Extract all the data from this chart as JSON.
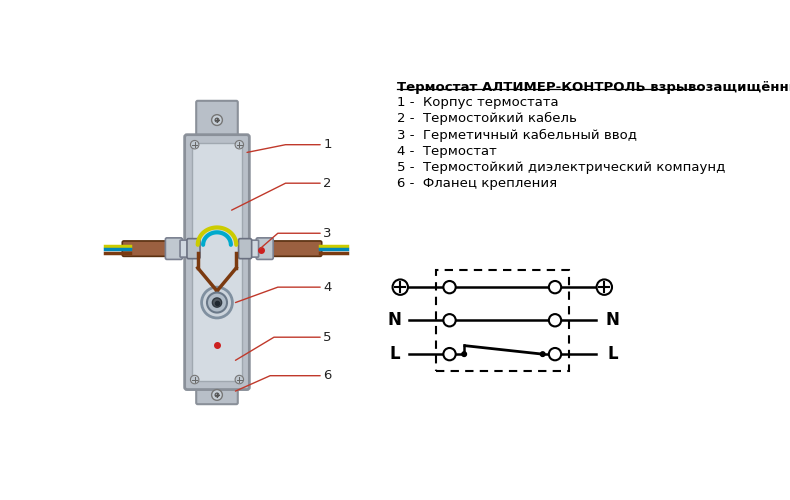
{
  "title": "Термостат АЛТИМЕР-КОНТРОЛЬ взрывозащищённый :",
  "legend_items": [
    "1 -  Корпус термостата",
    "2 -  Термостойкий кабель",
    "3 -  Герметичный кабельный ввод",
    "4 -  Термостат",
    "5 -  Термостойкий диэлектрический компаунд",
    "6 -  Фланец крепления"
  ],
  "background_color": "#ffffff",
  "text_color": "#000000",
  "line_color_red": "#c0392b",
  "box_color_outer": "#b8bfc8",
  "box_color_inner": "#d4dbe2",
  "wire_brown": "#9b6040",
  "wire_yellow_green": "#cccc00",
  "wire_blue": "#00aacc",
  "wire_brown2": "#8B4513",
  "gland_color": "#b0b8c0",
  "flange_color": "#c0c8d0"
}
